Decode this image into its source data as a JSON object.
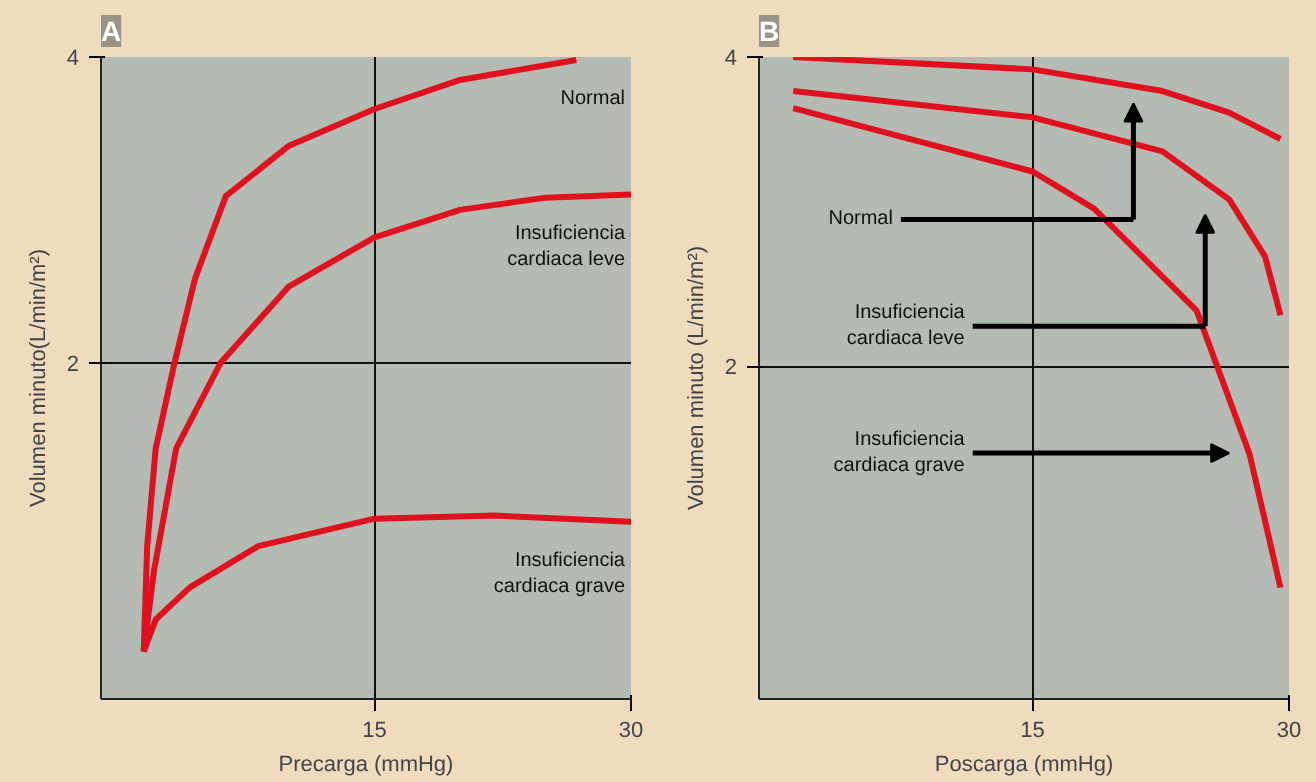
{
  "chart_data": [
    {
      "type": "line",
      "title": "A",
      "xlabel": "Precarga (mmHg)",
      "ylabel": "Volumen minuto(L/min/m²)",
      "xlim": [
        -1,
        30
      ],
      "ylim": [
        -0.2,
        4
      ],
      "xticks": [
        15,
        30
      ],
      "yticks": [
        2,
        4
      ],
      "grid": true,
      "line_style": "solid",
      "series": [
        {
          "name": "Normal",
          "color": "#e0101e",
          "x": [
            1.5,
            1.7,
            2.2,
            3.3,
            4.5,
            6.3,
            10,
            15,
            20,
            26.8
          ],
          "values": [
            0.11,
            0.8,
            1.44,
            2.0,
            2.55,
            3.09,
            3.42,
            3.66,
            3.85,
            3.98
          ]
        },
        {
          "name": "Insuficiencia\ncardiaca leve",
          "color": "#e0101e",
          "x": [
            1.5,
            2.1,
            3.4,
            6,
            10,
            15,
            20,
            25,
            30
          ],
          "values": [
            0.11,
            0.64,
            1.44,
            2.0,
            2.5,
            2.82,
            3.0,
            3.08,
            3.1
          ]
        },
        {
          "name": "Insuficiencia\ncardiaca grave",
          "color": "#e0101e",
          "x": [
            1.5,
            2.2,
            4.2,
            8.2,
            15,
            22,
            30
          ],
          "values": [
            0.11,
            0.32,
            0.53,
            0.8,
            0.98,
            1.0,
            0.96
          ]
        }
      ]
    },
    {
      "type": "line",
      "title": "B",
      "xlabel": "Poscarga (mmHg)",
      "ylabel": "Volumen minuto (L/min/m²)",
      "xlim": [
        -1,
        30
      ],
      "ylim": [
        -0.15,
        4
      ],
      "xticks": [
        15,
        30
      ],
      "yticks": [
        2,
        4
      ],
      "grid": true,
      "line_style": "solid",
      "series": [
        {
          "color": "#e0101e",
          "x": [
            1.0,
            15,
            22.6,
            26.5,
            29.5
          ],
          "values": [
            4.0,
            3.92,
            3.78,
            3.64,
            3.47
          ]
        },
        {
          "color": "#e0101e",
          "x": [
            1.0,
            15,
            22.6,
            26.5,
            28.6,
            29.5
          ],
          "values": [
            3.78,
            3.61,
            3.39,
            3.08,
            2.71,
            2.33
          ]
        },
        {
          "color": "#e0101e",
          "x": [
            1.0,
            15,
            18.6,
            24.6,
            25.8,
            27.7,
            29.5
          ],
          "values": [
            3.67,
            3.26,
            3.02,
            2.36,
            2.0,
            1.43,
            0.57
          ]
        }
      ],
      "annotations": [
        "Normal",
        "Insuficiencia\ncardiaca leve",
        "Insuficiencia\ncardiaca grave"
      ]
    }
  ]
}
